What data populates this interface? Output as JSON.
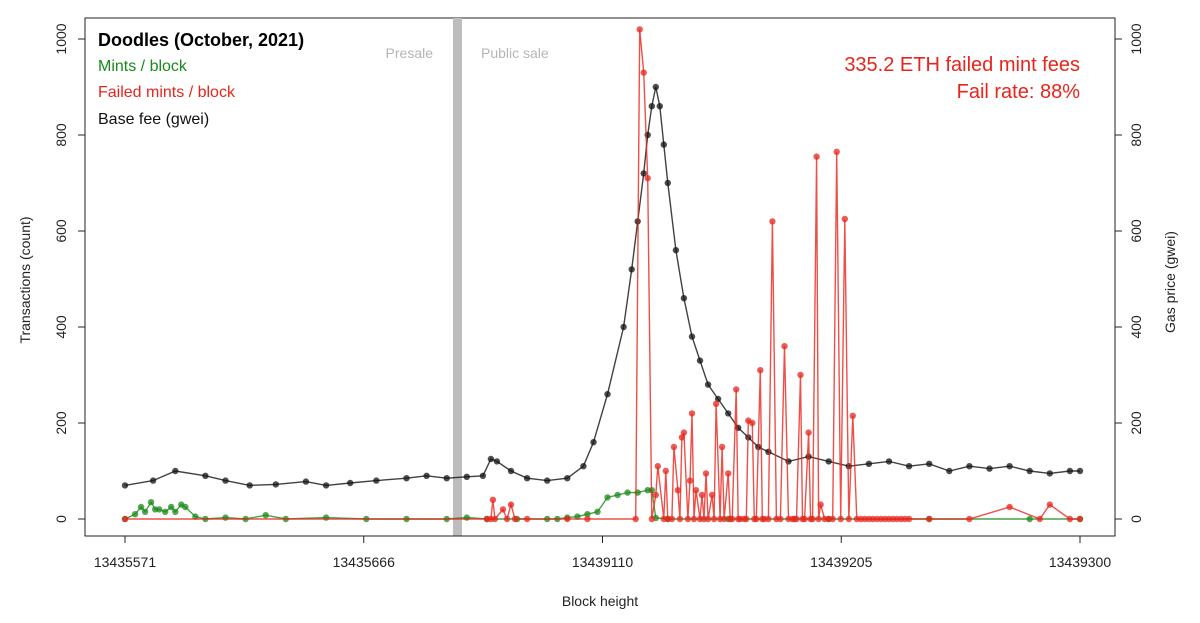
{
  "chart_data": {
    "type": "line",
    "title": "Doodles (October, 2021)",
    "xlabel": "Block height",
    "ylabel_left": "Transactions (count)",
    "ylabel_right": "Gas price (gwei)",
    "ylim_left": [
      0,
      1000
    ],
    "ylim_right": [
      0,
      1000
    ],
    "x_tick_labels": [
      "13435571",
      "13435666",
      "13439110",
      "13439205",
      "13439300"
    ],
    "y_left_ticks": [
      0,
      200,
      400,
      600,
      800,
      1000
    ],
    "y_right_ticks": [
      0,
      200,
      400,
      600,
      800,
      1000
    ],
    "grid": false,
    "legend_position": "top-left",
    "legend": [
      {
        "label": "Doodles (October, 2021)",
        "color": "#000000"
      },
      {
        "label": "Mints / block",
        "color": "#1a8a1a"
      },
      {
        "label": "Failed mints / block",
        "color": "#e8241c"
      },
      {
        "label": "Base fee (gwei)",
        "color": "#111111"
      }
    ],
    "phase_labels": {
      "presale": "Presale",
      "public": "Public sale"
    },
    "annotations": [
      "335.2 ETH failed mint fees",
      "Fail rate: 88%"
    ],
    "colors": {
      "mints": "#1a8a1a",
      "failed": "#e8241c",
      "base_fee": "#111111",
      "divider": "#bdbdbd",
      "phase_label": "#b5b5b5"
    },
    "series": [
      {
        "name": "Base fee (gwei)",
        "axis": "right",
        "x": [
          0,
          14,
          25,
          40,
          50,
          62,
          75,
          90,
          100,
          112,
          125,
          140,
          150,
          160,
          170,
          178,
          182,
          185,
          192,
          200,
          210,
          220,
          228,
          233,
          240,
          248,
          252,
          255,
          258,
          260,
          262,
          264,
          266,
          268,
          270,
          274,
          278,
          282,
          286,
          290,
          295,
          300,
          305,
          310,
          315,
          320,
          330,
          340,
          350,
          360,
          370,
          380,
          390,
          400,
          410,
          420,
          430,
          440,
          450,
          460,
          470,
          475
        ],
        "values": [
          70,
          80,
          100,
          90,
          80,
          70,
          72,
          78,
          70,
          75,
          80,
          85,
          90,
          85,
          88,
          90,
          125,
          120,
          100,
          85,
          80,
          85,
          110,
          160,
          260,
          400,
          520,
          620,
          720,
          800,
          860,
          900,
          860,
          780,
          700,
          560,
          460,
          380,
          330,
          280,
          250,
          220,
          190,
          170,
          150,
          140,
          120,
          130,
          120,
          110,
          115,
          120,
          110,
          115,
          100,
          110,
          105,
          110,
          100,
          95,
          100,
          100
        ]
      },
      {
        "name": "Mints / block",
        "axis": "left",
        "x": [
          0,
          5,
          8,
          10,
          13,
          15,
          17,
          20,
          23,
          25,
          28,
          30,
          35,
          40,
          50,
          60,
          70,
          80,
          100,
          120,
          140,
          160,
          170,
          180,
          195,
          210,
          215,
          220,
          225,
          230,
          235,
          240,
          245,
          250,
          255,
          260,
          262,
          264,
          270,
          300,
          350,
          400,
          450,
          475
        ],
        "values": [
          0,
          10,
          25,
          15,
          35,
          20,
          20,
          15,
          25,
          15,
          30,
          25,
          5,
          0,
          3,
          0,
          8,
          0,
          3,
          0,
          0,
          0,
          3,
          0,
          0,
          0,
          0,
          3,
          5,
          10,
          15,
          45,
          50,
          55,
          55,
          60,
          60,
          2,
          0,
          0,
          0,
          0,
          0,
          0
        ]
      },
      {
        "name": "Failed mints / block",
        "axis": "left",
        "x": [
          0,
          180,
          182,
          183,
          184,
          188,
          190,
          192,
          194,
          200,
          220,
          230,
          254,
          256,
          258,
          260,
          262,
          264,
          265,
          268,
          269,
          270,
          272,
          273,
          275,
          276,
          277,
          278,
          280,
          281,
          282,
          283,
          284,
          286,
          287,
          288,
          289,
          290,
          292,
          293,
          294,
          296,
          297,
          298,
          300,
          301,
          302,
          304,
          305,
          306,
          308,
          309,
          310,
          312,
          313,
          314,
          316,
          317,
          318,
          320,
          322,
          324,
          326,
          328,
          330,
          332,
          333,
          334,
          336,
          337,
          338,
          340,
          341,
          342,
          344,
          345,
          346,
          348,
          350,
          352,
          354,
          356,
          358,
          360,
          362,
          364,
          366,
          368,
          370,
          372,
          374,
          376,
          378,
          380,
          382,
          384,
          386,
          388,
          390,
          400,
          420,
          440,
          455,
          460,
          470,
          475
        ],
        "values": [
          0,
          0,
          0,
          40,
          0,
          20,
          0,
          30,
          0,
          0,
          0,
          0,
          0,
          1020,
          930,
          710,
          0,
          50,
          110,
          0,
          100,
          0,
          0,
          150,
          60,
          0,
          170,
          180,
          0,
          80,
          220,
          0,
          60,
          0,
          50,
          0,
          95,
          0,
          50,
          0,
          240,
          0,
          150,
          0,
          95,
          0,
          0,
          270,
          0,
          0,
          0,
          0,
          205,
          200,
          0,
          0,
          310,
          0,
          0,
          0,
          620,
          0,
          0,
          360,
          0,
          0,
          0,
          0,
          300,
          0,
          0,
          180,
          0,
          0,
          755,
          0,
          30,
          0,
          0,
          0,
          765,
          0,
          625,
          0,
          215,
          0,
          0,
          0,
          0,
          0,
          0,
          0,
          0,
          0,
          0,
          0,
          0,
          0,
          0,
          0,
          0,
          25,
          0,
          30,
          0,
          0
        ]
      }
    ]
  }
}
